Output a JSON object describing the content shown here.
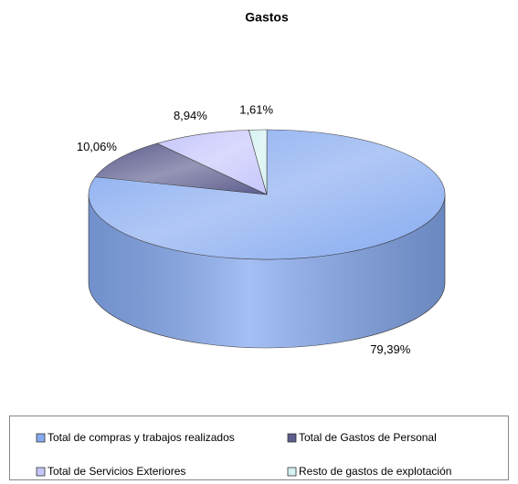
{
  "chart_data": {
    "type": "pie",
    "title": "Gastos",
    "categories": [
      "Total de compras y trabajos realizados",
      "Total de Gastos de Personal",
      "Total de Servicios Exteriores",
      "Resto de gastos de explotación"
    ],
    "values": [
      79.39,
      10.06,
      8.94,
      1.61
    ],
    "value_labels": [
      "79,39%",
      "10,06%",
      "8,94%",
      "1,61%"
    ],
    "colors": [
      "#86aaf0",
      "#5c5c8e",
      "#c6c6fc",
      "#d6f2f2"
    ],
    "legend": "bottom"
  }
}
